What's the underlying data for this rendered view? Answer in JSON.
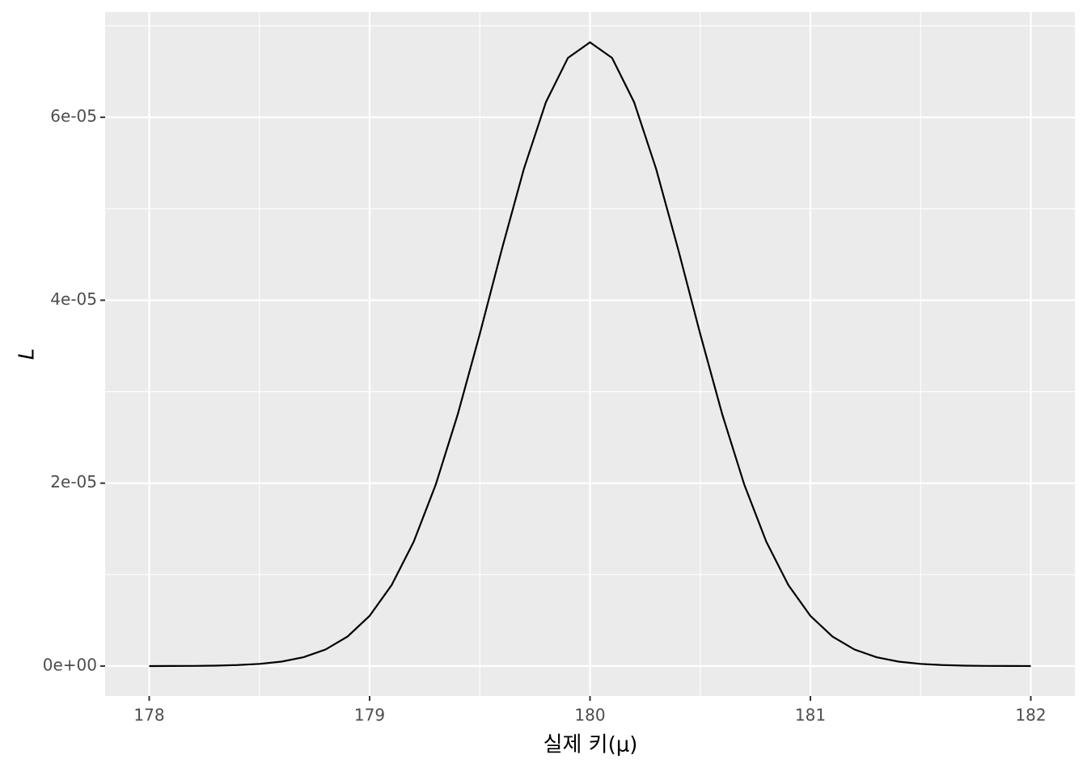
{
  "chart_data": {
    "type": "line",
    "x_label": "실제 키(μ)",
    "y_label": "L",
    "x": [
      178,
      178.1,
      178.2,
      178.3,
      178.4,
      178.5,
      178.6,
      178.7,
      178.8,
      178.9,
      179,
      179.1,
      179.2,
      179.3,
      179.4,
      179.5,
      179.6,
      179.7,
      179.8,
      179.9,
      180,
      180.1,
      180.2,
      180.3,
      180.4,
      180.5,
      180.6,
      180.7,
      180.8,
      180.9,
      181,
      181.1,
      181.2,
      181.3,
      181.4,
      181.5,
      181.6,
      181.7,
      181.8,
      181.9,
      182
    ],
    "series": [
      {
        "name": "L",
        "color": "#000000",
        "values": [
          3e-09,
          8e-09,
          1.9e-08,
          4.7e-08,
          1.08e-07,
          2.35e-07,
          4.88e-07,
          9.64e-07,
          1.81e-06,
          3.23e-06,
          5.49e-06,
          8.86e-06,
          1.359e-05,
          1.984e-05,
          2.753e-05,
          3.632e-05,
          4.557e-05,
          5.436e-05,
          6.166e-05,
          6.65e-05,
          6.82e-05,
          6.65e-05,
          6.166e-05,
          5.436e-05,
          4.557e-05,
          3.632e-05,
          2.753e-05,
          1.984e-05,
          1.359e-05,
          8.86e-06,
          5.49e-06,
          3.23e-06,
          1.81e-06,
          9.64e-07,
          4.88e-07,
          2.35e-07,
          1.08e-07,
          4.7e-08,
          1.9e-08,
          8e-09,
          3e-09
        ]
      }
    ],
    "xlim": [
      177.8,
      182.2
    ],
    "ylim": [
      -3.27e-06,
      7.15e-05
    ],
    "xticks": [
      178,
      179,
      180,
      181,
      182
    ],
    "yticks": [
      {
        "value": 0,
        "label": "0e+00"
      },
      {
        "value": 2e-05,
        "label": "2e-05"
      },
      {
        "value": 4e-05,
        "label": "4e-05"
      },
      {
        "value": 6e-05,
        "label": "6e-05"
      }
    ],
    "minor_xticks": [
      178.5,
      179.5,
      180.5,
      181.5
    ],
    "minor_yticks": [
      1e-05,
      3e-05,
      5e-05,
      7e-05
    ],
    "grid": true
  }
}
